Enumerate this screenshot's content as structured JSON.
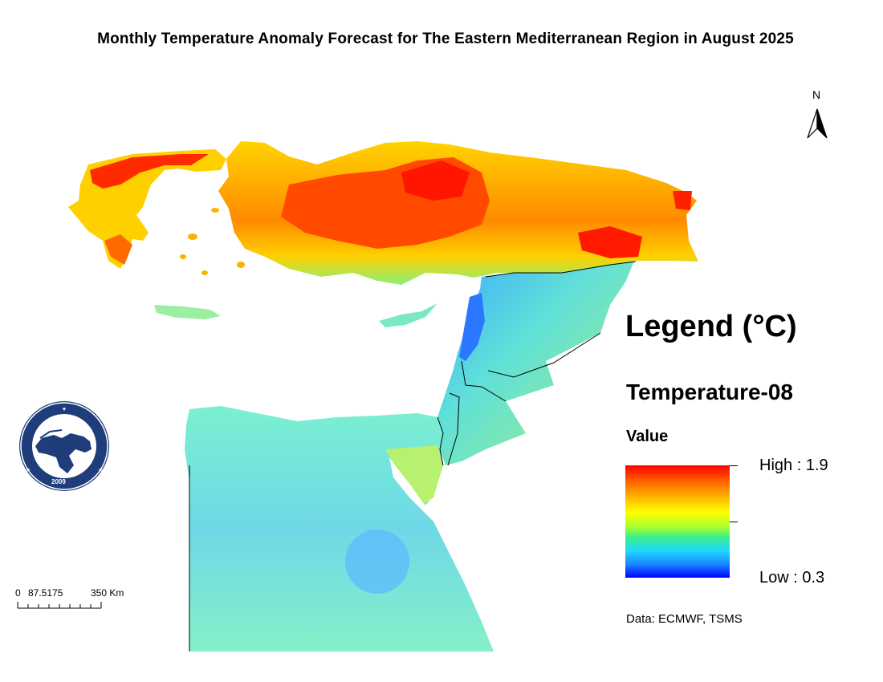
{
  "title": "Monthly Temperature Anomaly Forecast for The Eastern Mediterranean Region in August 2025",
  "north_arrow": {
    "letter": "N"
  },
  "legend": {
    "title": "Legend (°C)",
    "layer_name": "Temperature-08",
    "field_label": "Value",
    "high_label": "High : 1.9",
    "low_label": "Low : 0.3",
    "high_value": 1.9,
    "low_value": 0.3,
    "ramp_colors": [
      "#ff0000",
      "#ff7a00",
      "#ffd000",
      "#ffff00",
      "#a8ff30",
      "#3cf08c",
      "#20d8ff",
      "#1a88ff",
      "#0000ff"
    ]
  },
  "source": "Data: ECMWF, TSMS",
  "scale_bar": {
    "labels": [
      "0",
      "87.5175",
      "350",
      "Km"
    ]
  },
  "logo": {
    "ring_text": "EASTERN MEDITERRANEAN CLIMATE CENTRE",
    "year": "2009"
  },
  "colors": {
    "hot": "#ff0000",
    "warm": "#ff9900",
    "mild": "#ffff00",
    "cool": "#60e8b8",
    "cold": "#3fb0ff",
    "logo_blue": "#1f3d7a"
  }
}
